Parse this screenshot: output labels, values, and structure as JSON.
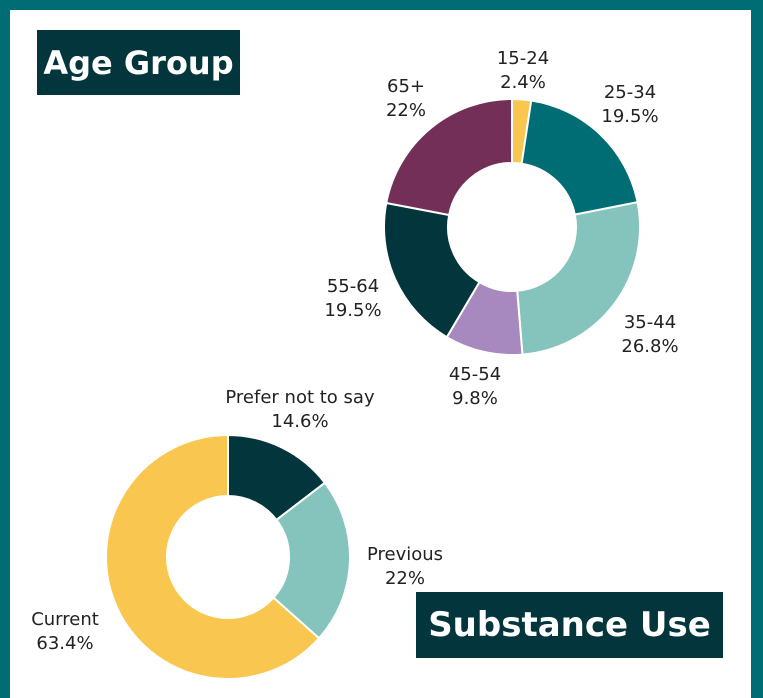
{
  "chart_data": [
    {
      "type": "pie",
      "title": "Age Group",
      "categories": [
        "15-24",
        "25-34",
        "35-44",
        "45-54",
        "55-64",
        "65+"
      ],
      "values": [
        2.4,
        19.5,
        26.8,
        9.8,
        19.5,
        22
      ],
      "value_labels": [
        "2.4%",
        "19.5%",
        "26.8%",
        "9.8%",
        "19.5%",
        "22%"
      ],
      "colors": [
        "#f9c74f",
        "#006d75",
        "#85c4bd",
        "#a788bf",
        "#02353c",
        "#742f58"
      ],
      "donut": true,
      "legend": "none"
    },
    {
      "type": "pie",
      "title": "Substance Use",
      "categories": [
        "Prefer not to say",
        "Previous",
        "Current"
      ],
      "values": [
        14.6,
        22,
        63.4
      ],
      "value_labels": [
        "14.6%",
        "22%",
        "63.4%"
      ],
      "colors": [
        "#02353c",
        "#85c4bd",
        "#f9c74f"
      ],
      "donut": true,
      "legend": "none"
    }
  ]
}
